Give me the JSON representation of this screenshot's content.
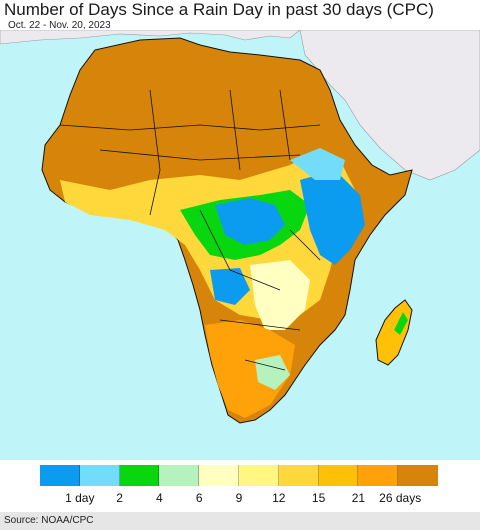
{
  "title": "Number of Days Since a Rain Day in past 30 days (CPC)",
  "subtitle": "Oct. 22 - Nov. 20, 2023",
  "source": "Source: NOAA/CPC",
  "colors": {
    "ocean": "#bff5f9",
    "outside_land": "#ece9ef",
    "border": "#111111"
  },
  "legend": {
    "colors": [
      "#0b9cf0",
      "#72dcfa",
      "#08d70f",
      "#b5f2be",
      "#ffffc2",
      "#fff782",
      "#ffd93c",
      "#ffc107",
      "#ffa209",
      "#d6840a"
    ],
    "tick_labels": [
      "1 day",
      "2",
      "4",
      "6",
      "9",
      "12",
      "15",
      "21",
      "26 days"
    ]
  }
}
